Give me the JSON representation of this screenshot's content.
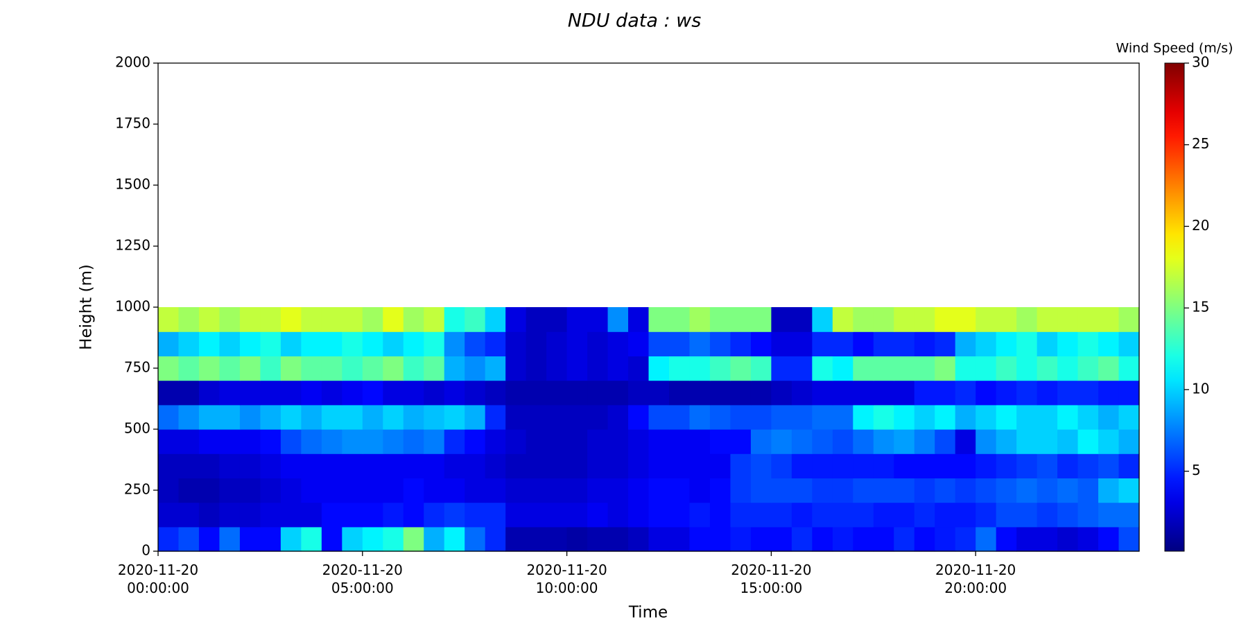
{
  "chart_data": {
    "type": "heatmap",
    "title": "NDU data : ws",
    "xlabel": "Time",
    "ylabel": "Height (m)",
    "colormap": "jet",
    "x": [
      0,
      0.5,
      1,
      1.5,
      2,
      2.5,
      3,
      3.5,
      4,
      4.5,
      5,
      5.5,
      6,
      6.5,
      7,
      7.5,
      8,
      8.5,
      9,
      9.5,
      10,
      10.5,
      11,
      11.5,
      12,
      12.5,
      13,
      13.5,
      14,
      14.5,
      15,
      15.5,
      16,
      16.5,
      17,
      17.5,
      18,
      18.5,
      19,
      19.5,
      20,
      20.5,
      21,
      21.5,
      22,
      22.5,
      23,
      23.5
    ],
    "x_step": 0.5,
    "y_bins": [
      0,
      100,
      200,
      300,
      400,
      500,
      600,
      700,
      800,
      900,
      1000
    ],
    "values": [
      [
        5,
        6,
        4,
        7,
        4,
        4,
        10,
        12,
        4,
        10,
        11,
        12,
        15,
        9,
        11,
        7,
        5,
        1.5,
        1.5,
        1.5,
        1.2,
        1.5,
        1.5,
        2,
        3,
        3,
        4,
        4,
        4.5,
        4,
        4,
        5,
        4,
        4.5,
        4,
        4,
        5,
        4,
        4.5,
        5,
        7,
        4,
        3,
        3,
        2.5,
        3,
        4,
        6
      ],
      [
        2.5,
        2.5,
        2,
        2.5,
        2.5,
        3,
        3,
        3,
        4,
        4,
        4,
        4.5,
        4,
        5,
        5.5,
        5,
        5,
        3,
        3,
        3,
        3,
        3.5,
        3,
        3.5,
        4,
        4,
        4.5,
        4,
        5,
        5,
        5,
        4.5,
        5,
        5,
        5,
        4.5,
        4.5,
        5,
        4.5,
        4.5,
        5,
        6,
        6,
        5.5,
        6,
        6.5,
        7,
        7
      ],
      [
        2,
        1.5,
        1.5,
        2,
        2,
        2.5,
        3,
        3.5,
        3.5,
        3.5,
        3.5,
        3.5,
        4,
        3.5,
        3.5,
        3,
        3,
        2.5,
        2.5,
        2.5,
        2.5,
        3,
        3,
        3.5,
        4,
        4,
        3.5,
        4,
        5.5,
        6,
        6,
        6,
        5.5,
        5.5,
        6,
        6,
        6,
        5.5,
        6,
        5.5,
        6,
        6.5,
        7,
        6.5,
        7,
        6.5,
        9,
        10
      ],
      [
        2,
        2,
        2,
        2.5,
        2.5,
        3,
        3.5,
        3.5,
        3.5,
        3.5,
        3.5,
        3.5,
        3.5,
        3.5,
        3,
        3,
        2.5,
        2,
        2,
        2,
        2,
        2.5,
        2.5,
        3,
        3.5,
        3.5,
        3.5,
        3.5,
        5.5,
        6,
        5.5,
        4.5,
        4.5,
        4.5,
        4.5,
        4.5,
        4,
        4,
        4,
        4,
        4.5,
        5,
        5.5,
        6,
        5,
        5.5,
        6,
        5
      ],
      [
        3,
        3,
        3.5,
        3.5,
        3.5,
        4,
        6,
        7,
        7.5,
        8,
        8,
        7.5,
        7,
        7.5,
        5,
        4,
        3,
        2.5,
        2,
        2,
        2,
        2.5,
        2.5,
        3,
        3.5,
        3.5,
        3.5,
        4,
        4,
        7,
        7.5,
        7,
        6.5,
        6,
        7,
        8,
        8.5,
        7.5,
        6,
        3,
        8,
        9,
        10,
        10,
        9.5,
        11,
        10,
        9
      ],
      [
        7,
        8,
        9,
        9,
        8,
        9,
        10,
        9,
        10,
        10,
        9,
        10,
        9,
        9.5,
        10,
        9,
        5,
        2,
        2,
        2,
        2,
        2,
        2.5,
        4,
        6,
        6,
        7,
        6.5,
        6,
        6,
        6.5,
        6.5,
        7,
        7,
        11,
        12,
        11,
        10,
        11,
        9,
        10,
        11,
        10,
        10,
        11,
        10,
        9,
        10
      ],
      [
        1.5,
        1.5,
        2.5,
        3,
        3,
        3,
        3,
        3.5,
        3,
        3.5,
        4,
        3,
        3,
        2.5,
        3,
        2.5,
        2,
        1.5,
        1.5,
        1.5,
        1.5,
        1.5,
        1.5,
        2,
        2,
        1.5,
        1.5,
        1.5,
        1.5,
        1.5,
        2,
        2.5,
        3,
        3,
        3,
        3,
        3,
        4.5,
        4.5,
        5,
        4,
        4.5,
        5,
        4.5,
        5,
        5,
        4.5,
        4.5
      ],
      [
        15,
        14,
        15,
        14,
        15,
        13,
        15,
        14,
        14,
        13,
        14,
        15,
        13,
        14,
        9,
        8,
        9,
        2.5,
        2,
        2.5,
        3,
        2.5,
        3,
        2.5,
        11,
        12,
        12,
        13,
        14,
        13,
        5,
        5,
        12,
        11,
        14,
        14,
        14,
        14,
        15,
        12,
        12,
        13,
        12,
        13,
        12,
        13,
        14,
        12
      ],
      [
        9,
        10,
        11,
        10,
        11,
        12,
        10,
        11,
        11,
        12,
        11,
        10,
        11,
        12,
        8,
        6,
        5,
        2.5,
        2,
        2.5,
        3,
        2.5,
        3,
        3.5,
        6,
        6,
        7,
        6,
        5,
        4,
        3,
        3,
        5,
        5,
        4,
        5,
        5,
        4.5,
        5,
        9,
        10,
        11,
        12,
        10,
        11,
        12,
        11,
        10
      ],
      [
        17,
        16,
        17,
        16,
        17,
        17,
        18,
        17,
        17,
        17,
        16,
        18,
        16,
        17,
        12,
        13,
        10,
        3,
        2,
        2,
        3,
        3,
        8,
        3,
        15,
        15,
        16,
        15,
        15,
        15,
        2,
        2,
        10,
        17,
        16,
        16,
        17,
        17,
        18,
        18,
        17,
        17,
        16,
        17,
        17,
        17,
        17,
        16
      ]
    ],
    "xlim": [
      0,
      24
    ],
    "xticks": [
      {
        "value": 0,
        "label": "2020-11-20\n00:00:00"
      },
      {
        "value": 5,
        "label": "2020-11-20\n05:00:00"
      },
      {
        "value": 10,
        "label": "2020-11-20\n10:00:00"
      },
      {
        "value": 15,
        "label": "2020-11-20\n15:00:00"
      },
      {
        "value": 20,
        "label": "2020-11-20\n20:00:00"
      }
    ],
    "ylim": [
      0,
      2000
    ],
    "yticks": [
      0,
      250,
      500,
      750,
      1000,
      1250,
      1500,
      1750,
      2000
    ],
    "colorbar": {
      "label": "Wind Speed (m/s)",
      "clim": [
        0.1,
        30
      ],
      "ticks": [
        5,
        10,
        15,
        20,
        25,
        30
      ]
    }
  }
}
